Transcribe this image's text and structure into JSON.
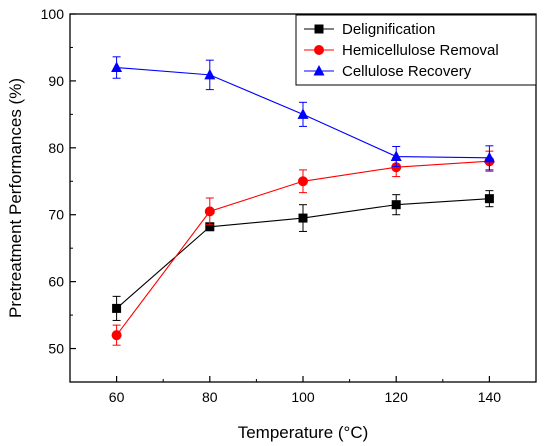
{
  "chart_data": {
    "type": "line",
    "title": "",
    "xlabel": "Temperature (°C)",
    "ylabel": "Pretreatment Performances (%)",
    "x": [
      60,
      80,
      100,
      120,
      140
    ],
    "xlim": [
      50,
      150
    ],
    "ylim": [
      45,
      100
    ],
    "xticks": [
      60,
      80,
      100,
      120,
      140
    ],
    "yticks": [
      50,
      60,
      70,
      80,
      90,
      100
    ],
    "grid": false,
    "legend_position": "top-right",
    "series": [
      {
        "name": "Delignification",
        "color": "#000000",
        "marker": "square",
        "values": [
          56.0,
          68.2,
          69.5,
          71.5,
          72.4
        ],
        "errors": [
          1.8,
          0,
          2.0,
          1.5,
          1.2
        ]
      },
      {
        "name": "Hemicellulose Removal",
        "color": "#ff0000",
        "marker": "circle",
        "values": [
          52.0,
          70.5,
          75.0,
          77.1,
          78.0
        ],
        "errors": [
          1.5,
          2.0,
          1.7,
          1.4,
          1.5
        ]
      },
      {
        "name": "Cellulose Recovery",
        "color": "#0000ff",
        "marker": "triangle",
        "values": [
          92.0,
          90.9,
          85.0,
          78.7,
          78.5
        ],
        "errors": [
          1.6,
          2.2,
          1.8,
          1.5,
          1.8
        ]
      }
    ]
  }
}
